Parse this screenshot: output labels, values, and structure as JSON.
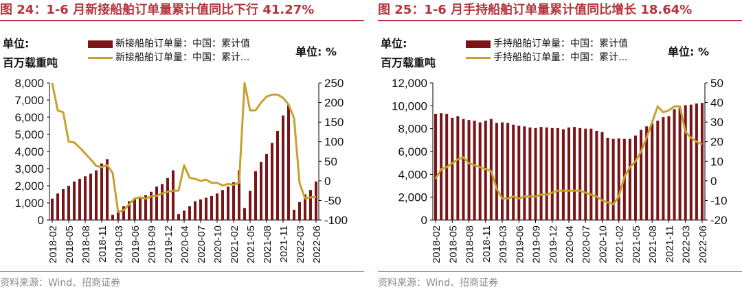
{
  "charts": [
    {
      "title": "图 24：1-6 月新接船舶订单量累计值同比下行 41.27%",
      "unit_left": [
        "单位:",
        "百万载重吨"
      ],
      "unit_right": "单位:   %",
      "source": "资料来源：Wind、招商证券"
    },
    {
      "title": "图 25：1-6 月手持船舶订单量累计值同比增长 18.64%",
      "unit_left": [
        "单位:",
        "百万载重吨"
      ],
      "unit_right": "单位:   %",
      "source": "资料来源：Wind、招商证券"
    }
  ],
  "chart_data": [
    {
      "type": "bar+line",
      "title": "图 24：1-6 月新接船舶订单量累计值同比下行 41.27%",
      "x_ticks": [
        "2018-02",
        "2018-05",
        "2018-08",
        "2018-11",
        "2019-03",
        "2019-06",
        "2019-09",
        "2019-12",
        "2020-04",
        "2020-07",
        "2020-10",
        "2021-02",
        "2021-05",
        "2021-08",
        "2021-11",
        "2022-03",
        "2022-06"
      ],
      "x": [
        "2018-02",
        "2018-03",
        "2018-04",
        "2018-05",
        "2018-06",
        "2018-07",
        "2018-08",
        "2018-09",
        "2018-10",
        "2018-11",
        "2018-12",
        "2019-02",
        "2019-03",
        "2019-04",
        "2019-05",
        "2019-06",
        "2019-07",
        "2019-08",
        "2019-09",
        "2019-10",
        "2019-11",
        "2019-12",
        "2020-02",
        "2020-03",
        "2020-04",
        "2020-05",
        "2020-06",
        "2020-07",
        "2020-08",
        "2020-09",
        "2020-10",
        "2020-11",
        "2020-12",
        "2021-02",
        "2021-03",
        "2021-04",
        "2021-05",
        "2021-06",
        "2021-07",
        "2021-08",
        "2021-09",
        "2021-10",
        "2021-11",
        "2021-12",
        "2022-02",
        "2022-03",
        "2022-04",
        "2022-05",
        "2022-06"
      ],
      "y_left_ticks": [
        "0",
        "1,000",
        "2,000",
        "3,000",
        "4,000",
        "5,000",
        "6,000",
        "7,000",
        "8,000"
      ],
      "y_left_lim": [
        0,
        8000
      ],
      "y_right_ticks": [
        "-100",
        "-50",
        "0",
        "50",
        "100",
        "150",
        "200",
        "250"
      ],
      "y_right_lim": [
        -100,
        250
      ],
      "series": [
        {
          "name": "新接船舶订单量：中国：累计值",
          "axis": "left",
          "kind": "bar",
          "color": "#7a1416",
          "values": [
            1250,
            1550,
            1800,
            2000,
            2250,
            2400,
            2550,
            2700,
            2900,
            3300,
            3550,
            300,
            500,
            800,
            1100,
            1200,
            1300,
            1450,
            1650,
            1950,
            2100,
            2450,
            2900,
            350,
            550,
            800,
            1100,
            1200,
            1300,
            1400,
            1550,
            1750,
            1950,
            2200,
            2900,
            700,
            1700,
            2850,
            3400,
            3850,
            4500,
            5200,
            6100,
            6700,
            600,
            1050,
            1500,
            1750,
            2250
          ]
        },
        {
          "name": "新接船舶订单量：中国：累计...",
          "axis": "left_dummy",
          "kind": "line",
          "color": "#c8a02c",
          "values": [
            250,
            180,
            175,
            100,
            98,
            85,
            70,
            55,
            38,
            35,
            40,
            20,
            -80,
            -75,
            -60,
            -45,
            -42,
            -45,
            -40,
            -38,
            -32,
            -28,
            -25,
            -25,
            40,
            8,
            5,
            0,
            3,
            -5,
            -5,
            -12,
            -8,
            -10,
            -5,
            250,
            180,
            180,
            200,
            215,
            220,
            220,
            212,
            195,
            160,
            -5,
            -45,
            -42,
            -41.27
          ]
        }
      ]
    },
    {
      "type": "bar+line",
      "title": "图 25：1-6 月手持船舶订单量累计值同比增长 18.64%",
      "x_ticks": [
        "2018-02",
        "2018-05",
        "2018-08",
        "2018-11",
        "2019-03",
        "2019-06",
        "2019-09",
        "2019-12",
        "2020-04",
        "2020-07",
        "2020-10",
        "2021-02",
        "2021-05",
        "2021-08",
        "2021-11",
        "2022-03",
        "2022-06"
      ],
      "x": [
        "2018-02",
        "2018-03",
        "2018-04",
        "2018-05",
        "2018-06",
        "2018-07",
        "2018-08",
        "2018-09",
        "2018-10",
        "2018-11",
        "2018-12",
        "2019-02",
        "2019-03",
        "2019-04",
        "2019-05",
        "2019-06",
        "2019-07",
        "2019-08",
        "2019-09",
        "2019-10",
        "2019-11",
        "2019-12",
        "2020-02",
        "2020-03",
        "2020-04",
        "2020-05",
        "2020-06",
        "2020-07",
        "2020-08",
        "2020-09",
        "2020-10",
        "2020-11",
        "2020-12",
        "2021-02",
        "2021-03",
        "2021-04",
        "2021-05",
        "2021-06",
        "2021-07",
        "2021-08",
        "2021-09",
        "2021-10",
        "2021-11",
        "2021-12",
        "2022-02",
        "2022-03",
        "2022-04",
        "2022-05",
        "2022-06"
      ],
      "y_left_ticks": [
        "0",
        "2,000",
        "4,000",
        "6,000",
        "8,000",
        "10,000",
        "12,000"
      ],
      "y_left_lim": [
        0,
        12000
      ],
      "y_right_ticks": [
        "-20",
        "-10",
        "0",
        "10",
        "20",
        "30",
        "40",
        "50"
      ],
      "y_right_lim": [
        -20,
        50
      ],
      "series": [
        {
          "name": "手持船舶订单量：中国：累计值",
          "axis": "left",
          "kind": "bar",
          "color": "#7a1416",
          "values": [
            9300,
            9350,
            9300,
            8950,
            9100,
            8850,
            8750,
            8700,
            8550,
            8700,
            8850,
            8500,
            8550,
            8500,
            8350,
            8250,
            8200,
            8100,
            8050,
            8150,
            8100,
            8050,
            8050,
            7950,
            8100,
            8150,
            8050,
            8000,
            8000,
            7800,
            7700,
            7200,
            7100,
            7150,
            7100,
            7100,
            7400,
            7900,
            8200,
            8450,
            8700,
            9000,
            9100,
            9700,
            9800,
            10050,
            10100,
            10200,
            10250
          ]
        },
        {
          "name": "手持船舶订单量：中国：累计...",
          "axis": "right",
          "kind": "line",
          "color": "#c8a02c",
          "values": [
            1,
            6,
            7,
            9,
            11,
            12,
            9,
            8,
            7,
            6,
            5,
            -4,
            -9,
            -9,
            -8,
            -9,
            -8,
            -8,
            -8,
            -7,
            -7,
            -6,
            -5,
            -5,
            -5,
            -5,
            -5,
            -6,
            -7,
            -8,
            -10,
            -11,
            -12,
            -8,
            2,
            7,
            10,
            15,
            22,
            30,
            38,
            35,
            36,
            38,
            38,
            25,
            22,
            20,
            18.64
          ]
        }
      ]
    }
  ]
}
